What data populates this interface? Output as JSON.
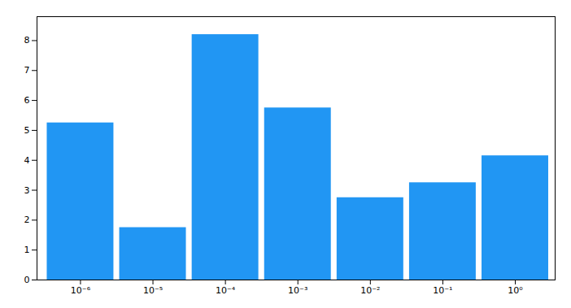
{
  "chart_data": {
    "type": "bar",
    "x": [
      1e-06,
      1e-05,
      0.0001,
      0.001,
      0.01,
      0.1,
      1
    ],
    "values": [
      5.25,
      1.75,
      8.2,
      5.75,
      2.75,
      3.25,
      4.15
    ],
    "color": "#2196F3",
    "log": "x",
    "xlim": [
      2.51188643150958e-07,
      3.54813389233576
    ],
    "xticks": [
      {
        "value": 1e-06,
        "label": "10⁻⁶"
      },
      {
        "value": 1e-05,
        "label": "10⁻⁵"
      },
      {
        "value": 0.0001,
        "label": "10⁻⁴"
      },
      {
        "value": 0.001,
        "label": "10⁻³"
      },
      {
        "value": 0.01,
        "label": "10⁻²"
      },
      {
        "value": 0.1,
        "label": "10⁻¹"
      },
      {
        "value": 1,
        "label": "10⁰"
      }
    ],
    "ylim": [
      0,
      8.8
    ],
    "yticks": [
      0,
      1,
      2,
      3,
      4,
      5,
      6,
      7,
      8
    ],
    "grid": false
  }
}
